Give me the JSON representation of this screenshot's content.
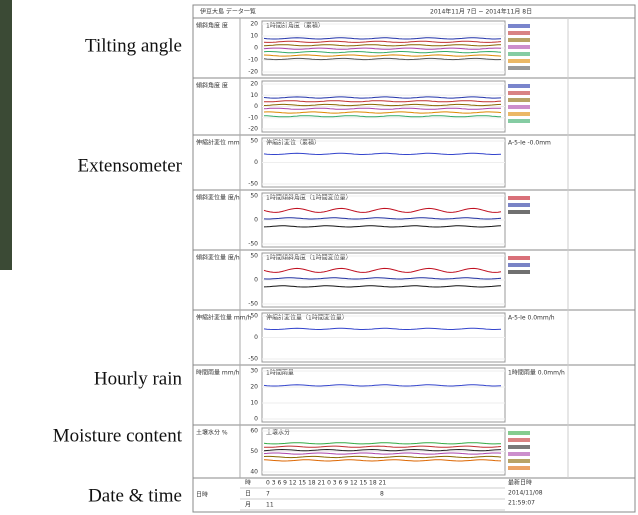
{
  "labels": [
    "Tilting angle",
    "Extensometer",
    "Hourly rain",
    "Moisture content",
    "Date & time"
  ],
  "header": {
    "title": "伊豆大島 データ一覧",
    "range": "2014年11月 7日 ~ 2014年11月 8日"
  },
  "panels": [
    {
      "label": "傾斜角度 度",
      "title": "1時間計角度（累積）",
      "ticks": [
        "20",
        "10",
        "0",
        "-10",
        "-20"
      ]
    },
    {
      "label": "傾斜角度 度",
      "title": "",
      "ticks": [
        "20",
        "10",
        "0",
        "-10",
        "-20"
      ]
    },
    {
      "label": "伸縮計変位 mm",
      "title": "伸縮計変位（累積）",
      "ticks": [
        "50",
        "0",
        "-50"
      ],
      "side": "A-5-Ie  -0.0mm"
    },
    {
      "label": "傾斜変位量 度/h",
      "title": "1時間傾斜角度（1時間変位量）",
      "ticks": [
        "50",
        "0",
        "-50"
      ]
    },
    {
      "label": "傾斜変位量 度/h",
      "title": "1時間傾斜角度（1時間変位量）",
      "ticks": [
        "50",
        "0",
        "-50"
      ]
    },
    {
      "label": "伸縮計変位量 mm/h",
      "title": "伸縮計変位量（1時間変位量）",
      "ticks": [
        "50",
        "0",
        "-50"
      ],
      "side": "A-5-Ie  0.0mm/h"
    },
    {
      "label": "時間雨量 mm/h",
      "title": "1時間雨量",
      "ticks": [
        "30",
        "20",
        "10",
        "0"
      ],
      "side": "1時間雨量  0.0mm/h"
    },
    {
      "label": "土壌水分 %",
      "title": "土壌水分",
      "ticks": [
        "60",
        "50",
        "40"
      ]
    }
  ],
  "datetime": {
    "label": "日時",
    "rows": [
      "時",
      "日",
      "月"
    ],
    "hours": "0  3  6  9  12  15  18  21  0  3  6  9  12  15  18  21",
    "days": [
      "7",
      "8"
    ],
    "month": "11",
    "latest": [
      "最新日時",
      "2014/11/08",
      "21:59:07"
    ]
  }
}
